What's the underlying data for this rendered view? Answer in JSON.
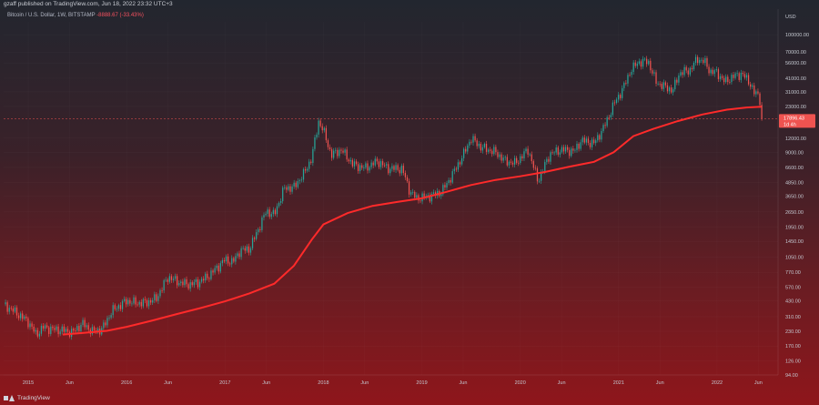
{
  "header": {
    "publisher_line": "gzaff published on TradingView.com, Jun 18, 2022 23:32 UTC+3"
  },
  "legend": {
    "symbol": "Bitcoin / U.S. Dollar, 1W, BITSTAMP",
    "change": "-8888.67 (-33.43%)"
  },
  "footer": {
    "brand": "TradingView"
  },
  "colors": {
    "up_candle": "#26a69a",
    "down_candle": "#ef5350",
    "ma_line": "#ff2a2a",
    "price_tag": "#ef5350"
  },
  "chart_data": {
    "type": "line",
    "y_scale": "log",
    "currency_label": "USD",
    "ylim": [
      94,
      130000
    ],
    "y_ticks": [
      100000,
      70000,
      56000,
      41000,
      31000,
      23000,
      12000,
      9000,
      6600,
      4850,
      3650,
      2650,
      1950,
      1450,
      1050,
      770,
      570,
      430,
      310,
      230,
      170,
      126,
      94
    ],
    "y_tick_labels": [
      "100000.00",
      "70000.00",
      "56000.00",
      "41000.00",
      "31000.00",
      "23000.00",
      "12000.00",
      "9000.00",
      "6600.00",
      "4850.00",
      "3650.00",
      "2650.00",
      "1950.00",
      "1450.00",
      "1050.00",
      "770.00",
      "570.00",
      "430.00",
      "310.00",
      "230.00",
      "170.00",
      "126.00",
      "94.00"
    ],
    "x_ticks": [
      {
        "label": "2015",
        "t": 2015.0
      },
      {
        "label": "Jun",
        "t": 2015.42
      },
      {
        "label": "2016",
        "t": 2016.0
      },
      {
        "label": "Jun",
        "t": 2016.42
      },
      {
        "label": "2017",
        "t": 2017.0
      },
      {
        "label": "Jun",
        "t": 2017.42
      },
      {
        "label": "2018",
        "t": 2018.0
      },
      {
        "label": "Jun",
        "t": 2018.42
      },
      {
        "label": "2019",
        "t": 2019.0
      },
      {
        "label": "Jun",
        "t": 2019.42
      },
      {
        "label": "2020",
        "t": 2020.0
      },
      {
        "label": "Jun",
        "t": 2020.42
      },
      {
        "label": "2021",
        "t": 2021.0
      },
      {
        "label": "Jun",
        "t": 2021.42
      },
      {
        "label": "2022",
        "t": 2022.0
      },
      {
        "label": "Jun",
        "t": 2022.42
      }
    ],
    "xlim": [
      2014.75,
      2022.62
    ],
    "last_price": {
      "value": 17896.43,
      "label": "17896.43",
      "sub": "1d 4h"
    },
    "series": [
      {
        "role": "price",
        "points": [
          [
            2014.75,
            400
          ],
          [
            2014.85,
            350
          ],
          [
            2015.0,
            280
          ],
          [
            2015.08,
            215
          ],
          [
            2015.15,
            250
          ],
          [
            2015.25,
            240
          ],
          [
            2015.35,
            235
          ],
          [
            2015.45,
            225
          ],
          [
            2015.55,
            270
          ],
          [
            2015.65,
            230
          ],
          [
            2015.75,
            240
          ],
          [
            2015.85,
            350
          ],
          [
            2016.0,
            430
          ],
          [
            2016.1,
            410
          ],
          [
            2016.2,
            415
          ],
          [
            2016.3,
            450
          ],
          [
            2016.42,
            700
          ],
          [
            2016.55,
            620
          ],
          [
            2016.65,
            600
          ],
          [
            2016.75,
            640
          ],
          [
            2016.85,
            740
          ],
          [
            2017.0,
            1000
          ],
          [
            2017.08,
            950
          ],
          [
            2017.15,
            1200
          ],
          [
            2017.25,
            1250
          ],
          [
            2017.33,
            1800
          ],
          [
            2017.42,
            2700
          ],
          [
            2017.5,
            2500
          ],
          [
            2017.6,
            4300
          ],
          [
            2017.7,
            4400
          ],
          [
            2017.8,
            5800
          ],
          [
            2017.88,
            8000
          ],
          [
            2017.95,
            17000
          ],
          [
            2018.0,
            14000
          ],
          [
            2018.08,
            8500
          ],
          [
            2018.18,
            9500
          ],
          [
            2018.3,
            7000
          ],
          [
            2018.42,
            6500
          ],
          [
            2018.55,
            7500
          ],
          [
            2018.65,
            6500
          ],
          [
            2018.8,
            6400
          ],
          [
            2018.88,
            4000
          ],
          [
            2018.95,
            3500
          ],
          [
            2019.1,
            3700
          ],
          [
            2019.2,
            4000
          ],
          [
            2019.3,
            5500
          ],
          [
            2019.42,
            8500
          ],
          [
            2019.5,
            12000
          ],
          [
            2019.6,
            10000
          ],
          [
            2019.75,
            9000
          ],
          [
            2019.85,
            7500
          ],
          [
            2019.95,
            7200
          ],
          [
            2020.08,
            9500
          ],
          [
            2020.18,
            5000
          ],
          [
            2020.3,
            8700
          ],
          [
            2020.42,
            9500
          ],
          [
            2020.55,
            9200
          ],
          [
            2020.62,
            11500
          ],
          [
            2020.75,
            10800
          ],
          [
            2020.85,
            15000
          ],
          [
            2020.95,
            24000
          ],
          [
            2021.05,
            34000
          ],
          [
            2021.12,
            48000
          ],
          [
            2021.2,
            57000
          ],
          [
            2021.3,
            58000
          ],
          [
            2021.38,
            38000
          ],
          [
            2021.48,
            34000
          ],
          [
            2021.55,
            32000
          ],
          [
            2021.62,
            46000
          ],
          [
            2021.72,
            48000
          ],
          [
            2021.8,
            61000
          ],
          [
            2021.87,
            58000
          ],
          [
            2021.93,
            47000
          ],
          [
            2022.0,
            46000
          ],
          [
            2022.08,
            38000
          ],
          [
            2022.15,
            42000
          ],
          [
            2022.25,
            45000
          ],
          [
            2022.33,
            38000
          ],
          [
            2022.38,
            30000
          ],
          [
            2022.42,
            29500
          ],
          [
            2022.45,
            24000
          ],
          [
            2022.47,
            17896
          ]
        ]
      },
      {
        "role": "moving_average",
        "points": [
          [
            2015.35,
            215
          ],
          [
            2015.55,
            222
          ],
          [
            2015.8,
            232
          ],
          [
            2016.0,
            252
          ],
          [
            2016.25,
            285
          ],
          [
            2016.5,
            325
          ],
          [
            2016.75,
            370
          ],
          [
            2017.0,
            425
          ],
          [
            2017.25,
            500
          ],
          [
            2017.5,
            610
          ],
          [
            2017.7,
            880
          ],
          [
            2017.88,
            1500
          ],
          [
            2018.0,
            2050
          ],
          [
            2018.25,
            2600
          ],
          [
            2018.5,
            3000
          ],
          [
            2018.75,
            3250
          ],
          [
            2019.0,
            3500
          ],
          [
            2019.25,
            4000
          ],
          [
            2019.5,
            4600
          ],
          [
            2019.75,
            5100
          ],
          [
            2020.0,
            5500
          ],
          [
            2020.25,
            6000
          ],
          [
            2020.5,
            6700
          ],
          [
            2020.75,
            7400
          ],
          [
            2020.95,
            9000
          ],
          [
            2021.15,
            12500
          ],
          [
            2021.35,
            14500
          ],
          [
            2021.6,
            17000
          ],
          [
            2021.85,
            19500
          ],
          [
            2022.1,
            21500
          ],
          [
            2022.3,
            22500
          ],
          [
            2022.45,
            22900
          ]
        ]
      }
    ]
  }
}
